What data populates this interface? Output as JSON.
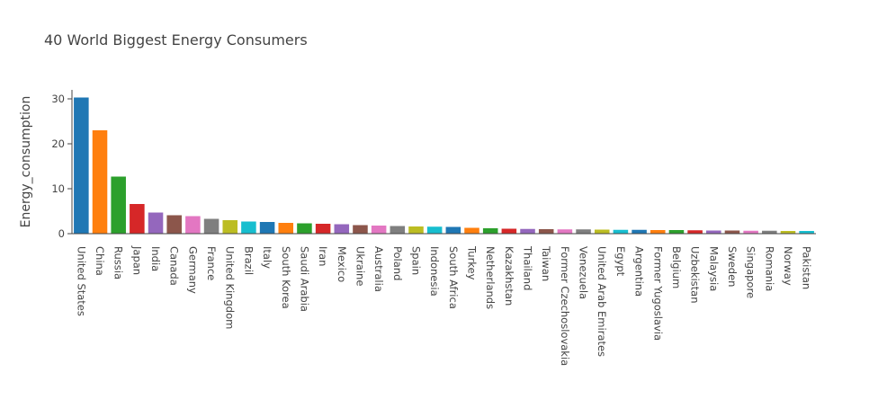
{
  "chart_data": {
    "type": "bar",
    "title": "40 World Biggest Energy Consumers",
    "xlabel": "",
    "ylabel": "Energy_consumption",
    "ylim": [
      0,
      32
    ],
    "yticks": [
      0,
      10,
      20,
      30
    ],
    "grid": false,
    "categories": [
      "United States",
      "China",
      "Russia",
      "Japan",
      "India",
      "Canada",
      "Germany",
      "France",
      "United Kingdom",
      "Brazil",
      "Italy",
      "South Korea",
      "Saudi Arabia",
      "Iran",
      "Mexico",
      "Ukraine",
      "Australia",
      "Poland",
      "Spain",
      "Indonesia",
      "South Africa",
      "Turkey",
      "Netherlands",
      "Kazakhstan",
      "Thailand",
      "Taiwan",
      "Former Czechoslovakia",
      "Venezuela",
      "United Arab Emirates",
      "Egypt",
      "Argentina",
      "Former Yugoslavia",
      "Belgium",
      "Uzbekistan",
      "Malaysia",
      "Sweden",
      "Singapore",
      "Romania",
      "Norway",
      "Pakistan"
    ],
    "values": [
      30.3,
      23.0,
      12.7,
      6.6,
      4.7,
      4.1,
      3.9,
      3.3,
      3.0,
      2.7,
      2.6,
      2.4,
      2.3,
      2.2,
      2.1,
      1.9,
      1.8,
      1.7,
      1.6,
      1.55,
      1.5,
      1.3,
      1.2,
      1.1,
      1.05,
      1.0,
      0.95,
      0.95,
      0.9,
      0.85,
      0.85,
      0.8,
      0.8,
      0.75,
      0.7,
      0.7,
      0.65,
      0.65,
      0.6,
      0.6
    ],
    "colors": [
      "#1f77b4",
      "#ff7f0e",
      "#2ca02c",
      "#d62728",
      "#9467bd",
      "#8c564b",
      "#e377c2",
      "#7f7f7f",
      "#bcbd22",
      "#17becf"
    ]
  }
}
